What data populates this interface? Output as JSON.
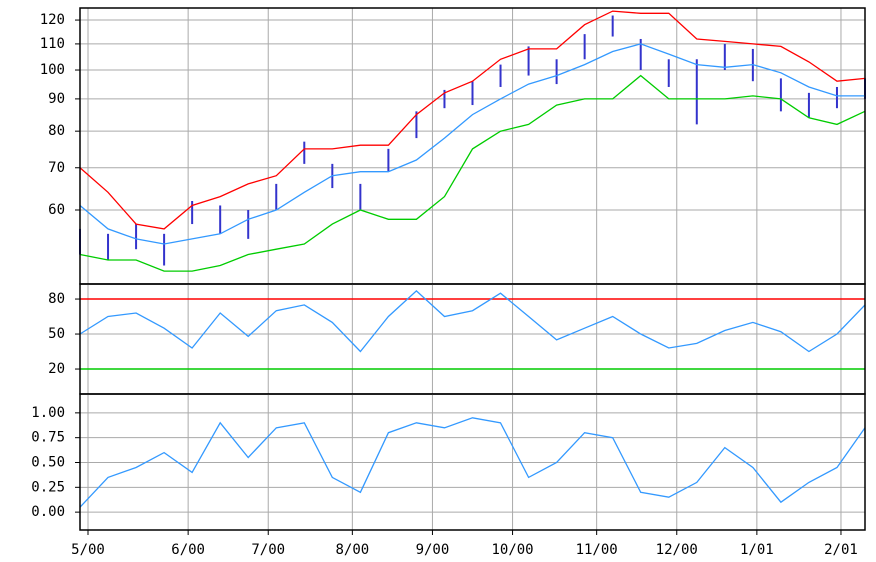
{
  "chart_data": {
    "type": "stock",
    "x": [
      0,
      7,
      14,
      21,
      28,
      35,
      42,
      49,
      56,
      63,
      70,
      77,
      84,
      91,
      98,
      105,
      112,
      119,
      126,
      133,
      140,
      147,
      154,
      161,
      168,
      175,
      182,
      189,
      196
    ],
    "xlim": [
      0,
      196
    ],
    "xticks": [
      {
        "value": 2,
        "label": "5/00"
      },
      {
        "value": 27,
        "label": "6/00"
      },
      {
        "value": 47,
        "label": "7/00"
      },
      {
        "value": 68,
        "label": "8/00"
      },
      {
        "value": 88,
        "label": "9/00"
      },
      {
        "value": 108,
        "label": "10/00"
      },
      {
        "value": 129,
        "label": "11/00"
      },
      {
        "value": 149,
        "label": "12/00"
      },
      {
        "value": 169,
        "label": "1/01"
      },
      {
        "value": 190,
        "label": "2/01"
      }
    ],
    "grid": true,
    "panels": [
      {
        "type": "ohlc",
        "log": true,
        "ylim": [
          45.8,
          125.4
        ],
        "yticks": [
          60,
          70,
          80,
          90,
          100,
          110,
          120
        ],
        "bars": {
          "color": "#3333cc",
          "high": [
            56,
            55,
            57,
            55,
            62,
            61,
            60,
            66,
            77,
            71,
            66,
            75,
            86,
            93,
            96,
            102,
            109,
            104,
            114,
            122,
            112,
            104,
            104,
            110,
            108,
            97,
            92,
            94,
            97
          ],
          "low": [
            51,
            50,
            52,
            49,
            57,
            55,
            54,
            60,
            71,
            65,
            60,
            69,
            78,
            87,
            88,
            94,
            98,
            95,
            104,
            113,
            100,
            94,
            82,
            100,
            96,
            86,
            84,
            87,
            90
          ]
        },
        "series": [
          {
            "color": "#ff0000",
            "values": [
              70,
              64,
              57,
              56,
              61,
              63,
              66,
              68,
              75,
              75,
              76,
              76,
              85,
              92,
              96,
              104,
              108,
              108,
              118,
              124,
              123,
              123,
              112,
              111,
              110,
              109,
              103,
              96,
              97
            ]
          },
          {
            "color": "#3399ff",
            "values": [
              61,
              56,
              54,
              53,
              54,
              55,
              58,
              60,
              64,
              68,
              69,
              69,
              72,
              78,
              85,
              90,
              95,
              98,
              102,
              107,
              110,
              106,
              102,
              101,
              102,
              99,
              94,
              91,
              91
            ]
          },
          {
            "color": "#00cc00",
            "values": [
              51,
              50,
              50,
              48,
              48,
              49,
              51,
              52,
              53,
              57,
              60,
              58,
              58,
              63,
              75,
              80,
              82,
              88,
              90,
              90,
              98,
              90,
              90,
              90,
              91,
              90,
              84,
              82,
              86
            ]
          }
        ]
      },
      {
        "type": "line",
        "ylim": [
          -1.4,
          92.9
        ],
        "yticks": [
          20,
          50,
          80
        ],
        "hlines": [
          {
            "value": 80,
            "color": "#ff0000"
          },
          {
            "value": 20,
            "color": "#00cc00"
          }
        ],
        "series": [
          {
            "color": "#3399ff",
            "values": [
              50,
              65,
              68,
              55,
              38,
              68,
              48,
              70,
              75,
              60,
              35,
              65,
              87,
              65,
              70,
              85,
              65,
              45,
              55,
              65,
              50,
              38,
              42,
              53,
              60,
              52,
              35,
              50,
              75
            ]
          }
        ]
      },
      {
        "type": "line",
        "ylim": [
          -0.18,
          1.19
        ],
        "yticks": [
          {
            "value": 0,
            "label": "0.00"
          },
          0.25,
          {
            "value": 0.5,
            "label": "0.50"
          },
          0.75,
          {
            "value": 1,
            "label": "1.00"
          }
        ],
        "series": [
          {
            "color": "#3399ff",
            "values": [
              0.05,
              0.35,
              0.45,
              0.6,
              0.4,
              0.9,
              0.55,
              0.85,
              0.9,
              0.35,
              0.2,
              0.8,
              0.9,
              0.85,
              0.95,
              0.9,
              0.35,
              0.5,
              0.8,
              0.75,
              0.2,
              0.15,
              0.3,
              0.65,
              0.45,
              0.1,
              0.3,
              0.45,
              0.85
            ]
          }
        ]
      }
    ]
  }
}
